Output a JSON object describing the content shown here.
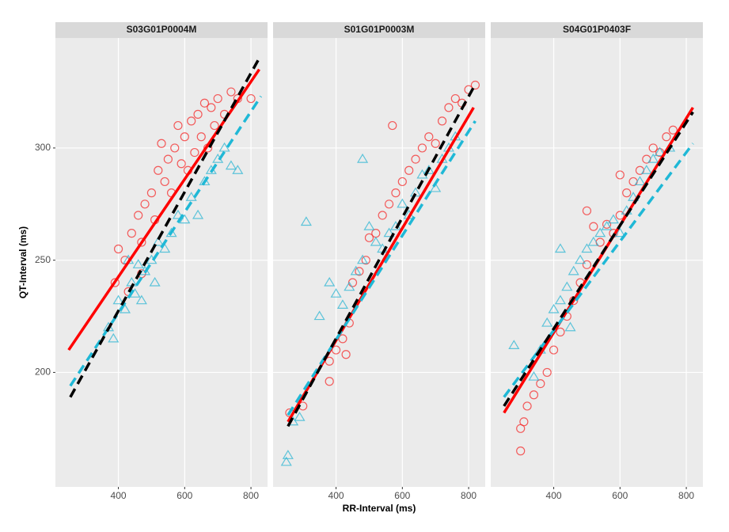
{
  "chart_data": [
    {
      "type": "scatter",
      "title": "S03G01P0004M",
      "y_label": "QT-Interval (ms)",
      "xlim": [
        210,
        850
      ],
      "ylim": [
        149,
        349
      ],
      "xticks": [
        400,
        600,
        800
      ],
      "yticks": [
        200,
        250,
        300
      ],
      "grid": true,
      "series": [
        {
          "marker": "circle",
          "color": "#f52a2a",
          "x": [
            390,
            400,
            420,
            440,
            460,
            470,
            480,
            500,
            510,
            520,
            530,
            540,
            550,
            560,
            570,
            580,
            590,
            600,
            610,
            620,
            630,
            640,
            650,
            660,
            670,
            680,
            690,
            700,
            720,
            740,
            760,
            800,
            430,
            470
          ],
          "values": [
            240,
            255,
            250,
            262,
            270,
            258,
            275,
            280,
            268,
            290,
            302,
            285,
            295,
            280,
            300,
            310,
            293,
            305,
            290,
            312,
            298,
            315,
            305,
            320,
            300,
            318,
            310,
            322,
            315,
            325,
            322,
            322,
            236,
            244
          ]
        },
        {
          "marker": "triangle",
          "color": "#2cb5d3",
          "x": [
            370,
            385,
            400,
            420,
            440,
            450,
            460,
            480,
            500,
            510,
            520,
            540,
            560,
            580,
            600,
            620,
            640,
            660,
            680,
            700,
            720,
            740,
            760,
            430,
            470
          ],
          "values": [
            220,
            215,
            232,
            228,
            240,
            235,
            248,
            245,
            250,
            240,
            258,
            255,
            262,
            270,
            268,
            278,
            270,
            285,
            290,
            295,
            300,
            292,
            290,
            250,
            232
          ]
        }
      ],
      "lines": [
        {
          "color": "#f00",
          "dash": false,
          "x": [
            250,
            825
          ],
          "values": [
            210,
            335
          ]
        },
        {
          "color": "#1fb8d6",
          "dash": true,
          "x": [
            255,
            830
          ],
          "values": [
            194,
            323
          ]
        },
        {
          "color": "#000",
          "dash": true,
          "x": [
            255,
            825
          ],
          "values": [
            189,
            340
          ]
        }
      ]
    },
    {
      "type": "scatter",
      "title": "S01G01P0003M",
      "x_label": "RR-Interval (ms)",
      "xlim": [
        210,
        850
      ],
      "ylim": [
        149,
        349
      ],
      "xticks": [
        400,
        600,
        800
      ],
      "yticks": [
        200,
        250,
        300
      ],
      "grid": true,
      "series": [
        {
          "marker": "circle",
          "color": "#f52a2a",
          "x": [
            260,
            300,
            380,
            400,
            420,
            440,
            450,
            470,
            490,
            500,
            520,
            540,
            560,
            570,
            580,
            600,
            620,
            640,
            660,
            680,
            700,
            720,
            740,
            760,
            780,
            800,
            820,
            380,
            430
          ],
          "values": [
            182,
            185,
            205,
            210,
            215,
            222,
            240,
            245,
            250,
            260,
            262,
            270,
            275,
            310,
            280,
            285,
            290,
            295,
            300,
            305,
            302,
            312,
            318,
            322,
            320,
            326,
            328,
            196,
            208
          ]
        },
        {
          "marker": "triangle",
          "color": "#2cb5d3",
          "x": [
            250,
            255,
            270,
            290,
            310,
            350,
            380,
            400,
            420,
            440,
            460,
            480,
            500,
            520,
            540,
            560,
            580,
            600,
            620,
            640,
            660,
            680,
            700,
            720,
            740,
            760,
            480
          ],
          "values": [
            160,
            163,
            178,
            180,
            267,
            225,
            240,
            235,
            230,
            238,
            245,
            250,
            265,
            258,
            255,
            262,
            265,
            275,
            270,
            280,
            288,
            290,
            282,
            295,
            300,
            305,
            295
          ]
        }
      ],
      "lines": [
        {
          "color": "#f00",
          "dash": false,
          "x": [
            255,
            815
          ],
          "values": [
            178,
            318
          ]
        },
        {
          "color": "#1fb8d6",
          "dash": true,
          "x": [
            255,
            820
          ],
          "values": [
            181,
            312
          ]
        },
        {
          "color": "#000",
          "dash": true,
          "x": [
            255,
            815
          ],
          "values": [
            176,
            327
          ]
        }
      ]
    },
    {
      "type": "scatter",
      "title": "S04G01P0403F",
      "xlim": [
        210,
        850
      ],
      "ylim": [
        149,
        349
      ],
      "xticks": [
        400,
        600,
        800
      ],
      "yticks": [
        200,
        250,
        300
      ],
      "grid": true,
      "series": [
        {
          "marker": "circle",
          "color": "#f52a2a",
          "x": [
            300,
            300,
            310,
            320,
            340,
            360,
            380,
            400,
            420,
            440,
            460,
            480,
            500,
            520,
            540,
            560,
            580,
            600,
            620,
            640,
            660,
            680,
            700,
            720,
            740,
            760,
            500,
            600
          ],
          "values": [
            165,
            175,
            178,
            185,
            190,
            195,
            200,
            210,
            218,
            225,
            232,
            240,
            248,
            265,
            258,
            266,
            262,
            270,
            280,
            285,
            290,
            295,
            300,
            298,
            305,
            308,
            272,
            288
          ]
        },
        {
          "marker": "triangle",
          "color": "#2cb5d3",
          "x": [
            280,
            340,
            360,
            380,
            400,
            420,
            440,
            460,
            480,
            500,
            520,
            540,
            560,
            580,
            600,
            620,
            640,
            660,
            680,
            700,
            720,
            750,
            420,
            450
          ],
          "values": [
            212,
            198,
            210,
            222,
            228,
            232,
            238,
            245,
            250,
            255,
            258,
            262,
            265,
            268,
            262,
            272,
            278,
            285,
            290,
            295,
            298,
            300,
            255,
            220
          ]
        }
      ],
      "lines": [
        {
          "color": "#f00",
          "dash": false,
          "x": [
            250,
            820
          ],
          "values": [
            182,
            318
          ]
        },
        {
          "color": "#1fb8d6",
          "dash": true,
          "x": [
            250,
            820
          ],
          "values": [
            189,
            302
          ]
        },
        {
          "color": "#000",
          "dash": true,
          "x": [
            250,
            820
          ],
          "values": [
            185,
            316
          ]
        }
      ]
    }
  ]
}
